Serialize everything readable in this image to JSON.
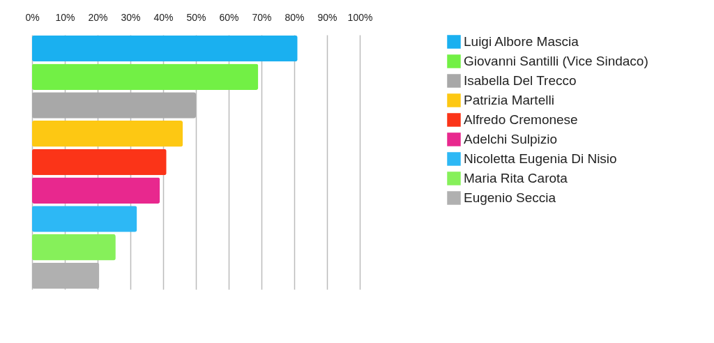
{
  "chart_data": {
    "type": "bar",
    "orientation": "horizontal",
    "categories": [
      null,
      null,
      null,
      null,
      null,
      null,
      null,
      null,
      null
    ],
    "xlim": [
      0,
      100
    ],
    "xticks": [
      {
        "value": 0,
        "label": "0%"
      },
      {
        "value": 10,
        "label": "10%"
      },
      {
        "value": 20,
        "label": "20%"
      },
      {
        "value": 30,
        "label": "30%"
      },
      {
        "value": 40,
        "label": "40%"
      },
      {
        "value": 50,
        "label": "50%"
      },
      {
        "value": 60,
        "label": "60%"
      },
      {
        "value": 70,
        "label": "70%"
      },
      {
        "value": 80,
        "label": "80%"
      },
      {
        "value": 90,
        "label": "90%"
      },
      {
        "value": 100,
        "label": "100%"
      }
    ],
    "grid": "x",
    "legend": "right",
    "series": [
      {
        "name": "Luigi Albore Mascia",
        "color": "#1ab0f0",
        "values": [
          81,
          null,
          null,
          null,
          null,
          null,
          null,
          null,
          null
        ]
      },
      {
        "name": "Giovanni Santilli (Vice Sindaco)",
        "color": "#72f045",
        "values": [
          null,
          69,
          null,
          null,
          null,
          null,
          null,
          null,
          null
        ]
      },
      {
        "name": "Isabella Del Trecco",
        "color": "#a8a8a8",
        "values": [
          null,
          null,
          50,
          null,
          null,
          null,
          null,
          null,
          null
        ]
      },
      {
        "name": "Patrizia Martelli",
        "color": "#fdc813",
        "values": [
          null,
          null,
          null,
          46,
          null,
          null,
          null,
          null,
          null
        ]
      },
      {
        "name": "Alfredo Cremonese",
        "color": "#fb3418",
        "values": [
          null,
          null,
          null,
          null,
          41,
          null,
          null,
          null,
          null
        ]
      },
      {
        "name": "Adelchi Sulpizio",
        "color": "#e8288e",
        "values": [
          null,
          null,
          null,
          null,
          null,
          39,
          null,
          null,
          null
        ]
      },
      {
        "name": "Nicoletta Eugenia Di Nisio",
        "color": "#2db8f5",
        "values": [
          null,
          null,
          null,
          null,
          null,
          null,
          32,
          null,
          null
        ]
      },
      {
        "name": "Maria Rita Carota",
        "color": "#86f05a",
        "values": [
          null,
          null,
          null,
          null,
          null,
          null,
          null,
          25.5,
          null
        ]
      },
      {
        "name": "Eugenio Seccia",
        "color": "#b0b0b0",
        "values": [
          null,
          null,
          null,
          null,
          null,
          null,
          null,
          null,
          20.5
        ]
      }
    ]
  }
}
